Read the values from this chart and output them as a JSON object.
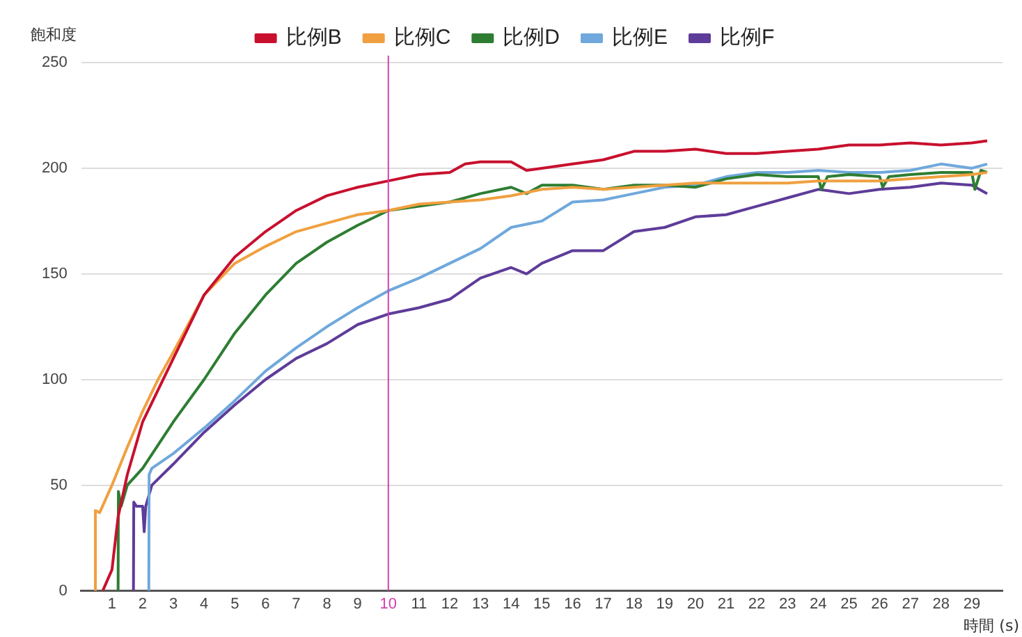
{
  "chart_data": {
    "type": "line",
    "ylabel": "飽和度",
    "xlabel": "時間 (s)",
    "xlim": [
      0,
      30
    ],
    "xticks": [
      1,
      2,
      3,
      4,
      5,
      6,
      7,
      8,
      9,
      10,
      11,
      12,
      13,
      14,
      15,
      16,
      17,
      18,
      19,
      20,
      21,
      22,
      23,
      24,
      25,
      26,
      27,
      28,
      29
    ],
    "ylim": [
      0,
      250
    ],
    "yticks": [
      0,
      50,
      100,
      150,
      200,
      250
    ],
    "grid": "y",
    "legend": "top",
    "marker": "none",
    "line_style": "solid",
    "ref_lines": [
      {
        "axis": "x",
        "value": 10,
        "label": null,
        "color": "#d63fb0"
      }
    ],
    "series": [
      {
        "name": "比例B",
        "color": "#c8102e",
        "x": [
          0.7,
          1,
          1.2,
          1.5,
          2,
          2.5,
          3,
          4,
          5,
          6,
          7,
          8,
          9,
          10,
          11,
          12,
          12.5,
          13,
          14,
          14.5,
          15,
          16,
          17,
          18,
          19,
          20,
          21,
          22,
          23,
          24,
          25,
          26,
          27,
          28,
          29,
          29.5
        ],
        "values": [
          0,
          10,
          35,
          55,
          80,
          95,
          110,
          140,
          158,
          170,
          180,
          187,
          191,
          194,
          197,
          198,
          202,
          203,
          203,
          199,
          200,
          202,
          204,
          208,
          208,
          209,
          207,
          207,
          208,
          209,
          211,
          211,
          212,
          211,
          212,
          213
        ]
      },
      {
        "name": "比例C",
        "color": "#f0a040",
        "x": [
          0.45,
          0.46,
          0.6,
          1,
          1.5,
          2,
          2.5,
          3,
          4,
          5,
          6,
          7,
          8,
          9,
          10,
          11,
          12,
          13,
          14,
          15,
          16,
          17,
          18,
          19,
          20,
          21,
          22,
          23,
          24,
          25,
          26,
          27,
          28,
          29,
          29.5
        ],
        "values": [
          0,
          38,
          37,
          50,
          68,
          85,
          100,
          113,
          140,
          155,
          163,
          170,
          174,
          178,
          180,
          183,
          184,
          185,
          187,
          190,
          191,
          190,
          191,
          192,
          193,
          193,
          193,
          193,
          194,
          194,
          194,
          195,
          196,
          197,
          198
        ]
      },
      {
        "name": "比例D",
        "color": "#2e7d32",
        "x": [
          1.2,
          1.21,
          1.3,
          1.5,
          2,
          3,
          4,
          5,
          6,
          7,
          8,
          9,
          10,
          11,
          12,
          13,
          14,
          14.5,
          15,
          16,
          17,
          18,
          19,
          20,
          21,
          22,
          23,
          24,
          24.1,
          24.3,
          25,
          26,
          26.1,
          26.3,
          27,
          28,
          29,
          29.1,
          29.3,
          29.5
        ],
        "values": [
          0,
          47,
          40,
          50,
          58,
          80,
          100,
          122,
          140,
          155,
          165,
          173,
          180,
          182,
          184,
          188,
          191,
          188,
          192,
          192,
          190,
          192,
          192,
          191,
          195,
          197,
          196,
          196,
          190,
          196,
          197,
          196,
          191,
          196,
          197,
          198,
          198,
          190,
          199,
          198
        ]
      },
      {
        "name": "比例E",
        "color": "#6fa8dc",
        "x": [
          2.2,
          2.21,
          2.3,
          3,
          4,
          5,
          6,
          7,
          8,
          9,
          10,
          11,
          12,
          13,
          14,
          15,
          16,
          17,
          18,
          19,
          20,
          21,
          22,
          23,
          24,
          25,
          26,
          27,
          28,
          29,
          29.5
        ],
        "values": [
          0,
          55,
          58,
          65,
          77,
          90,
          104,
          115,
          125,
          134,
          142,
          148,
          155,
          162,
          172,
          175,
          184,
          185,
          188,
          191,
          192,
          196,
          198,
          198,
          199,
          198,
          198,
          199,
          202,
          200,
          202
        ]
      },
      {
        "name": "比例F",
        "color": "#5e3c99",
        "x": [
          1.7,
          1.71,
          1.8,
          2,
          2.05,
          2.1,
          2.3,
          3,
          4,
          5,
          6,
          7,
          8,
          9,
          10,
          11,
          12,
          13,
          14,
          14.5,
          15,
          16,
          17,
          18,
          19,
          20,
          21,
          22,
          23,
          24,
          25,
          26,
          27,
          28,
          29,
          29.5
        ],
        "values": [
          0,
          42,
          40,
          40,
          28,
          40,
          50,
          60,
          75,
          88,
          100,
          110,
          117,
          126,
          131,
          134,
          138,
          148,
          153,
          150,
          155,
          161,
          161,
          170,
          172,
          177,
          178,
          182,
          186,
          190,
          188,
          190,
          191,
          193,
          192,
          188
        ]
      }
    ]
  }
}
